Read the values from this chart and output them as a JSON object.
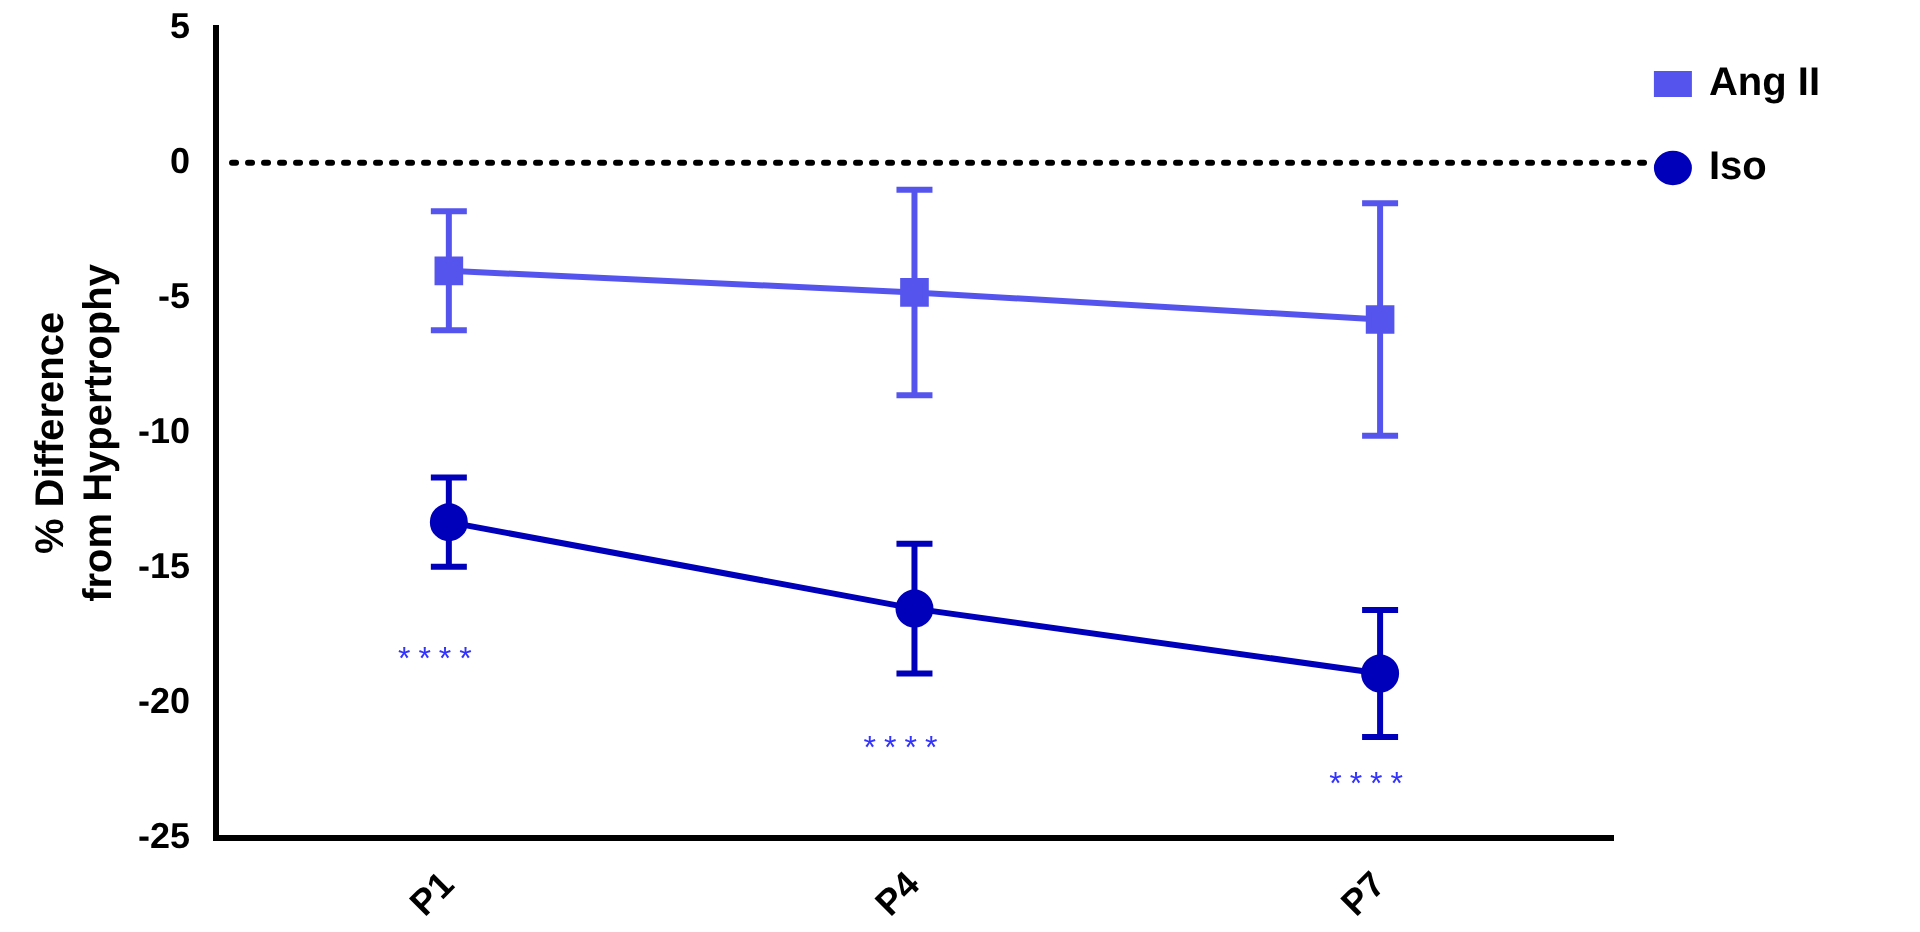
{
  "chart_data": {
    "type": "line",
    "ylabel": "% Difference\nfrom Hypertrophy",
    "categories": [
      "P1",
      "P4",
      "P7"
    ],
    "series": [
      {
        "name": "Ang II",
        "color": "#5555ee",
        "marker": "square",
        "values": [
          -4.0,
          -4.8,
          -5.8
        ],
        "errors": [
          2.2,
          3.8,
          4.3
        ]
      },
      {
        "name": "Iso",
        "color": "#0000bb",
        "marker": "circle",
        "values": [
          -13.3,
          -16.5,
          -18.9
        ],
        "errors": [
          1.65,
          2.4,
          2.35
        ]
      }
    ],
    "ylim": [
      -25,
      5
    ],
    "yticks": [
      -25,
      -20,
      -15,
      -10,
      -5,
      0,
      5
    ],
    "grid": false,
    "legend": "top right",
    "ref_lines": [
      {
        "axis": "y",
        "value": 0,
        "line_style": "dotted",
        "color": "#000000"
      }
    ],
    "annotations": [
      "****",
      "****",
      "****"
    ]
  }
}
